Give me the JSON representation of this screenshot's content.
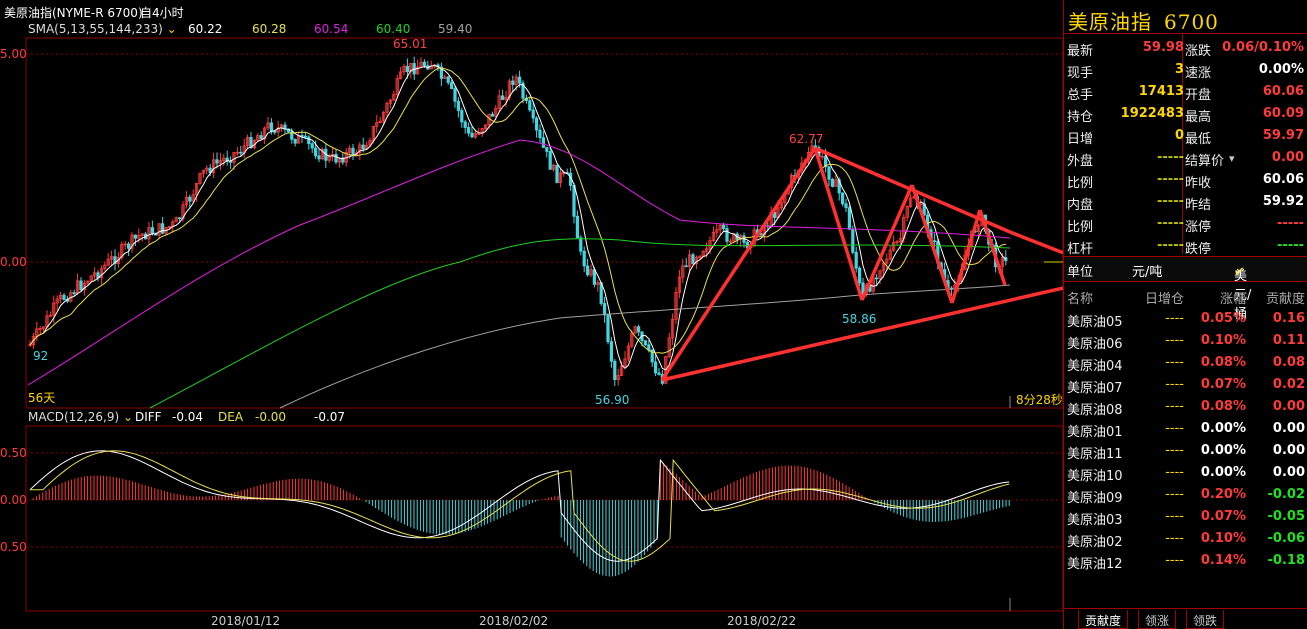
{
  "header": {
    "symbol_title": "美原油指(NYME-R 6700)",
    "period": "自4小时",
    "sma_label": "SMA(5,13,55,144,233)",
    "sma_values": [
      "60.22",
      "60.28",
      "60.54",
      "60.40",
      "59.40"
    ],
    "macd_label": "MACD(12,26,9)",
    "diff_label": "DIFF",
    "diff_value": "-0.04",
    "dea_label": "DEA",
    "dea_value": "-0.00",
    "macd_value": "-0.07"
  },
  "chart": {
    "price_axis": [
      "5.00",
      "0.00"
    ],
    "macd_axis": [
      "0.50",
      "0.00",
      "0.50"
    ],
    "annotations": {
      "high": "65.01",
      "peak2": "62.77",
      "trough2": "58.86",
      "low": "56.90",
      "left_edge": "92"
    },
    "days_label": "56天",
    "countdown": "8分28秒",
    "x_dates": [
      "2018/01/12",
      "2018/02/02",
      "2018/02/22"
    ],
    "colors": {
      "up": "#ff3b3b",
      "down": "#44d6e0",
      "sma5": "#ffffff",
      "sma13": "#e8e050",
      "sma55": "#e020e0",
      "sma144": "#20d020",
      "sma233": "#a0a0a0",
      "trendline": "#ff3030",
      "grid": "#8b0000"
    }
  },
  "chart_data": {
    "type": "line",
    "title": "美原油指(NYME-R 6700)",
    "ylabel": "",
    "xlabel": "",
    "annotated_prices": [
      65.01,
      62.77,
      58.86,
      56.9
    ],
    "sma_latest": {
      "SMA5": 60.22,
      "SMA13": 60.28,
      "SMA55": 60.54,
      "SMA144": 60.4,
      "SMA233": 59.4
    },
    "x_ticks": [
      "2018/01/12",
      "2018/02/02",
      "2018/02/22"
    ],
    "macd": {
      "DIFF": -0.04,
      "DEA": -0.0,
      "MACD": -0.07,
      "yticks": [
        0.5,
        0.0,
        0.5
      ]
    }
  },
  "panel": {
    "title": "美原油指",
    "code": "6700",
    "quote_rows": [
      {
        "l1": "最新",
        "v1": "59.98",
        "c1": "red",
        "l2": "涨跌",
        "v2": "0.06/0.10%",
        "c2": "red"
      },
      {
        "l1": "现手",
        "v1": "3",
        "c1": "yellow",
        "l2": "速涨",
        "v2": "0.00%",
        "c2": "white"
      },
      {
        "l1": "总手",
        "v1": "17413",
        "c1": "yellow",
        "l2": "开盘",
        "v2": "60.06",
        "c2": "red"
      },
      {
        "l1": "持仓",
        "v1": "1922483",
        "c1": "yellow",
        "l2": "最高",
        "v2": "60.09",
        "c2": "red"
      },
      {
        "l1": "日增",
        "v1": "0",
        "c1": "yellow",
        "l2": "最低",
        "v2": "59.97",
        "c2": "red"
      },
      {
        "l1": "外盘",
        "v1": "-----",
        "c1": "dim",
        "l2": "结算价",
        "v2": "0.00",
        "c2": "red"
      },
      {
        "l1": "比例",
        "v1": "-----",
        "c1": "dim",
        "l2": "昨收",
        "v2": "60.06",
        "c2": "white"
      },
      {
        "l1": "内盘",
        "v1": "-----",
        "c1": "dim",
        "l2": "昨结",
        "v2": "59.92",
        "c2": "white"
      },
      {
        "l1": "比例",
        "v1": "-----",
        "c1": "dim",
        "l2": "涨停",
        "v2": "-----",
        "c2": "red"
      },
      {
        "l1": "杠杆",
        "v1": "-----",
        "c1": "dim",
        "l2": "跌停",
        "v2": "-----",
        "c2": "green"
      }
    ],
    "unit_label": "单位",
    "unit_yuan": "元/吨",
    "unit_usd": "美元/桶",
    "list_headers": [
      "名称",
      "日增仓",
      "涨幅",
      "贡献度"
    ],
    "list_rows": [
      {
        "name": "美原油05",
        "oi": "----",
        "chg": "0.05%",
        "cc": "red",
        "ctb": "0.16",
        "tc": "red"
      },
      {
        "name": "美原油06",
        "oi": "----",
        "chg": "0.10%",
        "cc": "red",
        "ctb": "0.11",
        "tc": "red"
      },
      {
        "name": "美原油04",
        "oi": "----",
        "chg": "0.08%",
        "cc": "red",
        "ctb": "0.08",
        "tc": "red"
      },
      {
        "name": "美原油07",
        "oi": "----",
        "chg": "0.07%",
        "cc": "red",
        "ctb": "0.02",
        "tc": "red"
      },
      {
        "name": "美原油08",
        "oi": "----",
        "chg": "0.08%",
        "cc": "red",
        "ctb": "0.00",
        "tc": "red"
      },
      {
        "name": "美原油01",
        "oi": "----",
        "chg": "0.00%",
        "cc": "white",
        "ctb": "0.00",
        "tc": "white"
      },
      {
        "name": "美原油11",
        "oi": "----",
        "chg": "0.00%",
        "cc": "white",
        "ctb": "0.00",
        "tc": "white"
      },
      {
        "name": "美原油10",
        "oi": "----",
        "chg": "0.00%",
        "cc": "white",
        "ctb": "0.00",
        "tc": "white"
      },
      {
        "name": "美原油09",
        "oi": "----",
        "chg": "0.20%",
        "cc": "red",
        "ctb": "-0.02",
        "tc": "green"
      },
      {
        "name": "美原油03",
        "oi": "----",
        "chg": "0.07%",
        "cc": "red",
        "ctb": "-0.05",
        "tc": "green"
      },
      {
        "name": "美原油02",
        "oi": "----",
        "chg": "0.10%",
        "cc": "red",
        "ctb": "-0.06",
        "tc": "green"
      },
      {
        "name": "美原油12",
        "oi": "----",
        "chg": "0.14%",
        "cc": "red",
        "ctb": "-0.18",
        "tc": "green"
      }
    ],
    "tabs": [
      "贡献度",
      "领涨",
      "领跌"
    ]
  }
}
